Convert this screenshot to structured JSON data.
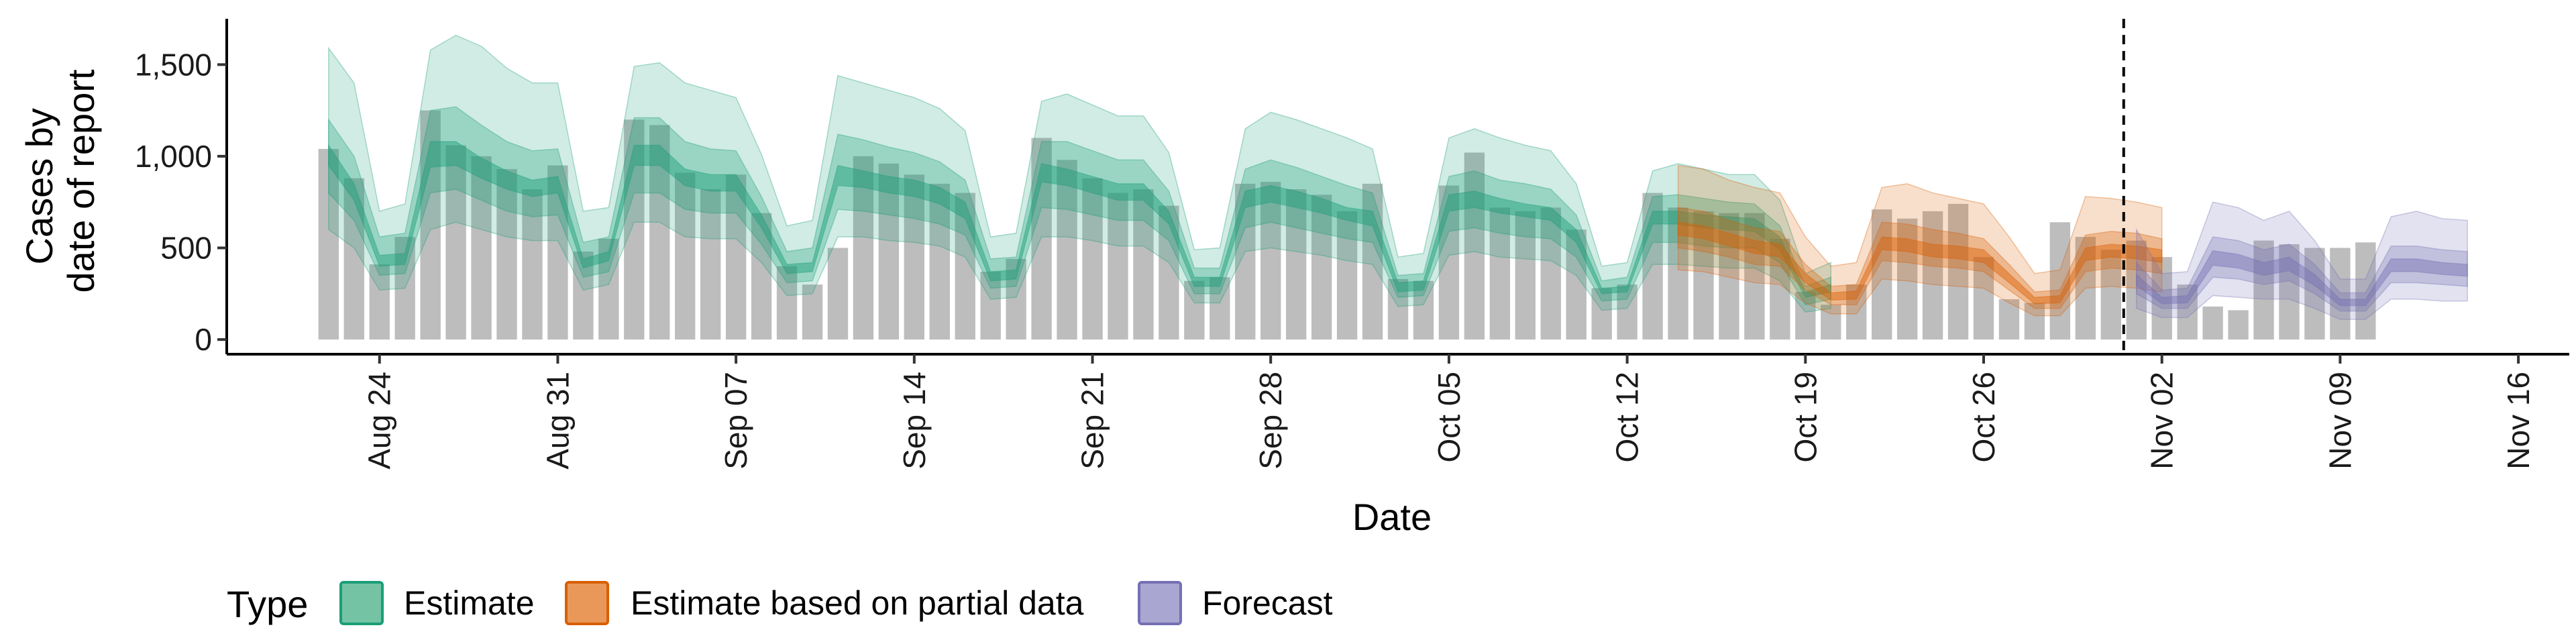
{
  "chart_data": {
    "type": "area",
    "xlabel": "Date",
    "ylabel_lines": [
      "Cases by",
      "date of report"
    ],
    "x_range": [
      "2020-08-18",
      "2020-11-18"
    ],
    "ylim": [
      -80,
      1750
    ],
    "y_ticks": [
      0,
      500,
      1000,
      1500
    ],
    "y_tick_labels": [
      "0",
      "500",
      "1,000",
      "1,500"
    ],
    "x_ticks": [
      "2020-08-24",
      "2020-08-31",
      "2020-09-07",
      "2020-09-14",
      "2020-09-21",
      "2020-09-28",
      "2020-10-05",
      "2020-10-12",
      "2020-10-19",
      "2020-10-26",
      "2020-11-02",
      "2020-11-09",
      "2020-11-16"
    ],
    "x_tick_labels": [
      "Aug 24",
      "Aug 31",
      "Sep 07",
      "Sep 14",
      "Sep 21",
      "Sep 28",
      "Oct 05",
      "Oct 12",
      "Oct 19",
      "Oct 26",
      "Nov 02",
      "Nov 09",
      "Nov 16"
    ],
    "bar_start_date": "2020-08-22",
    "reported_cases": [
      1040,
      880,
      410,
      560,
      1250,
      1060,
      1000,
      930,
      820,
      950,
      480,
      550,
      1200,
      1170,
      910,
      820,
      900,
      690,
      400,
      300,
      500,
      1000,
      960,
      900,
      850,
      800,
      370,
      440,
      1100,
      980,
      880,
      800,
      820,
      730,
      320,
      340,
      850,
      860,
      820,
      790,
      700,
      850,
      330,
      320,
      840,
      1020,
      720,
      700,
      720,
      600,
      280,
      300,
      800,
      720,
      700,
      690,
      690,
      550,
      260,
      190,
      300,
      710,
      660,
      700,
      740,
      450,
      220,
      200,
      640,
      560,
      490,
      540,
      450,
      300,
      180,
      160,
      540,
      520,
      500,
      500,
      530
    ],
    "forecast_cutoff": "2020-10-31",
    "band_colors": {
      "Estimate": "#1b9e77",
      "Estimate based on partial data": "#d95f02",
      "Forecast": "#7570b3"
    },
    "bar_color": "#bdbdbd",
    "legend": {
      "title": "Type",
      "position": "bottom",
      "items": [
        {
          "label": "Estimate",
          "fill": "#74c3a5",
          "stroke": "#1b9e77"
        },
        {
          "label": "Estimate based on partial data",
          "fill": "#e9985a",
          "stroke": "#d95f02"
        },
        {
          "label": "Forecast",
          "fill": "#a9a6d1",
          "stroke": "#7570b3"
        }
      ]
    },
    "series": [
      {
        "name": "Estimate",
        "start_date": "2020-08-22",
        "median": [
          1000,
          800,
          430,
          440,
          1000,
          1000,
          930,
          860,
          820,
          840,
          410,
          450,
          1000,
          1000,
          880,
          850,
          850,
          640,
          380,
          390,
          890,
          870,
          840,
          820,
          780,
          700,
          340,
          350,
          900,
          880,
          840,
          800,
          800,
          660,
          310,
          310,
          760,
          790,
          760,
          720,
          680,
          650,
          280,
          290,
          740,
          760,
          720,
          700,
          680,
          560,
          260,
          270,
          660,
          660,
          640,
          630,
          620,
          520,
          240,
          280
        ],
        "lower_90": [
          600,
          500,
          270,
          280,
          600,
          640,
          600,
          560,
          540,
          540,
          270,
          300,
          640,
          640,
          560,
          550,
          550,
          420,
          240,
          250,
          560,
          560,
          540,
          530,
          510,
          450,
          220,
          230,
          560,
          560,
          540,
          510,
          510,
          420,
          200,
          200,
          480,
          500,
          480,
          460,
          430,
          410,
          180,
          190,
          460,
          480,
          450,
          440,
          430,
          350,
          160,
          170,
          410,
          410,
          400,
          390,
          390,
          320,
          150,
          170
        ],
        "upper_90": [
          1590,
          1400,
          700,
          740,
          1580,
          1660,
          1600,
          1480,
          1400,
          1400,
          700,
          720,
          1490,
          1510,
          1400,
          1360,
          1320,
          1010,
          620,
          650,
          1440,
          1400,
          1360,
          1320,
          1260,
          1140,
          560,
          580,
          1300,
          1340,
          1280,
          1220,
          1220,
          1020,
          490,
          500,
          1150,
          1240,
          1200,
          1150,
          1100,
          1040,
          450,
          470,
          1100,
          1150,
          1100,
          1060,
          1030,
          850,
          400,
          420,
          920,
          960,
          930,
          900,
          900,
          760,
          360,
          420
        ],
        "lower_50": [
          800,
          650,
          350,
          360,
          800,
          820,
          760,
          700,
          670,
          680,
          340,
          370,
          800,
          800,
          710,
          690,
          690,
          520,
          310,
          320,
          710,
          700,
          680,
          660,
          630,
          570,
          280,
          290,
          720,
          710,
          680,
          650,
          650,
          540,
          250,
          250,
          610,
          640,
          610,
          580,
          550,
          530,
          230,
          240,
          590,
          610,
          580,
          560,
          550,
          450,
          210,
          220,
          530,
          530,
          510,
          500,
          500,
          420,
          190,
          220
        ],
        "upper_50": [
          1200,
          1000,
          560,
          580,
          1250,
          1270,
          1170,
          1080,
          1030,
          1040,
          530,
          560,
          1210,
          1210,
          1080,
          1040,
          1030,
          780,
          480,
          500,
          1120,
          1090,
          1050,
          1020,
          970,
          870,
          440,
          450,
          1080,
          1080,
          1030,
          980,
          980,
          810,
          390,
          390,
          930,
          980,
          940,
          890,
          840,
          800,
          350,
          360,
          890,
          920,
          870,
          850,
          820,
          680,
          320,
          340,
          780,
          790,
          770,
          750,
          740,
          620,
          290,
          340
        ],
        "lower_20": [
          950,
          760,
          400,
          410,
          940,
          950,
          880,
          820,
          780,
          800,
          390,
          430,
          950,
          950,
          840,
          810,
          810,
          610,
          360,
          370,
          840,
          830,
          800,
          780,
          740,
          660,
          320,
          330,
          860,
          840,
          800,
          760,
          760,
          630,
          290,
          290,
          720,
          750,
          720,
          690,
          650,
          620,
          260,
          270,
          700,
          720,
          690,
          670,
          650,
          530,
          250,
          260,
          630,
          630,
          610,
          600,
          590,
          490,
          230,
          260
        ],
        "upper_20": [
          1060,
          850,
          460,
          470,
          1080,
          1080,
          990,
          920,
          870,
          890,
          440,
          480,
          1060,
          1060,
          930,
          900,
          900,
          680,
          410,
          420,
          950,
          920,
          890,
          870,
          830,
          750,
          370,
          380,
          960,
          930,
          890,
          850,
          850,
          700,
          340,
          340,
          810,
          840,
          810,
          770,
          720,
          700,
          310,
          320,
          790,
          810,
          770,
          740,
          720,
          600,
          280,
          290,
          700,
          700,
          680,
          670,
          660,
          560,
          260,
          300
        ]
      },
      {
        "name": "Estimate based on partial data",
        "start_date": "2020-10-14",
        "median": [
          600,
          580,
          540,
          500,
          480,
          330,
          230,
          240,
          520,
          510,
          480,
          470,
          450,
          330,
          210,
          220,
          460,
          480,
          470,
          450
        ],
        "lower_90": [
          380,
          370,
          340,
          310,
          300,
          200,
          140,
          140,
          330,
          320,
          300,
          290,
          280,
          200,
          130,
          130,
          280,
          290,
          280,
          260
        ],
        "upper_90": [
          950,
          930,
          870,
          830,
          800,
          560,
          400,
          420,
          830,
          850,
          800,
          770,
          740,
          560,
          360,
          380,
          780,
          770,
          750,
          720
        ],
        "lower_50": [
          500,
          480,
          450,
          410,
          400,
          270,
          190,
          190,
          430,
          420,
          400,
          390,
          370,
          270,
          170,
          170,
          370,
          390,
          380,
          360
        ],
        "upper_50": [
          720,
          700,
          650,
          610,
          590,
          410,
          290,
          300,
          640,
          630,
          600,
          580,
          550,
          410,
          260,
          270,
          570,
          590,
          580,
          550
        ],
        "lower_20": [
          570,
          550,
          510,
          470,
          450,
          310,
          215,
          220,
          490,
          480,
          450,
          440,
          420,
          310,
          195,
          200,
          430,
          450,
          440,
          420
        ],
        "upper_20": [
          640,
          620,
          580,
          540,
          520,
          360,
          255,
          265,
          560,
          550,
          520,
          510,
          490,
          360,
          230,
          240,
          500,
          520,
          510,
          490
        ]
      },
      {
        "name": "Forecast",
        "start_date": "2020-11-01",
        "median": [
          320,
          210,
          220,
          440,
          420,
          380,
          410,
          320,
          200,
          200,
          400,
          400,
          380,
          370
        ],
        "lower_90": [
          170,
          120,
          120,
          240,
          230,
          220,
          220,
          170,
          110,
          110,
          220,
          220,
          210,
          210
        ],
        "upper_90": [
          600,
          360,
          370,
          750,
          720,
          650,
          700,
          540,
          330,
          330,
          670,
          700,
          660,
          650
        ],
        "lower_50": [
          250,
          170,
          170,
          340,
          330,
          300,
          320,
          250,
          155,
          155,
          310,
          310,
          300,
          290
        ],
        "upper_50": [
          420,
          270,
          280,
          560,
          540,
          490,
          520,
          410,
          255,
          255,
          510,
          510,
          490,
          480
        ],
        "lower_20": [
          295,
          195,
          200,
          405,
          390,
          350,
          375,
          295,
          185,
          185,
          370,
          370,
          355,
          345
        ],
        "upper_20": [
          355,
          230,
          240,
          485,
          465,
          420,
          450,
          355,
          220,
          220,
          440,
          440,
          420,
          410
        ]
      }
    ]
  }
}
